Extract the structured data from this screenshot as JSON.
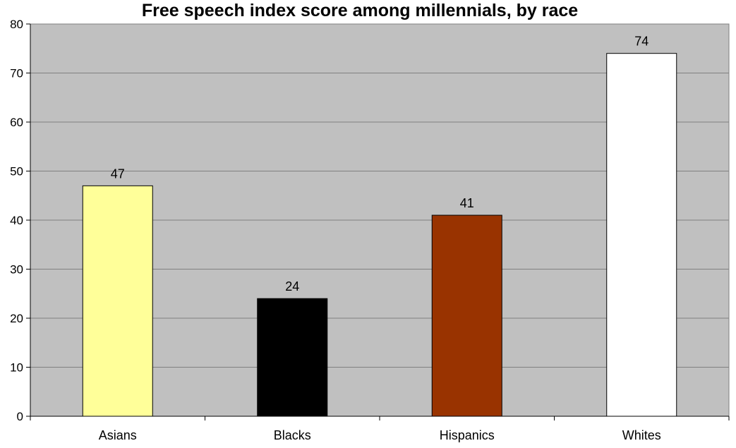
{
  "chart_data": {
    "type": "bar",
    "title": "Free speech index score among millennials, by race",
    "xlabel": "",
    "ylabel": "",
    "categories": [
      "Asians",
      "Blacks",
      "Hispanics",
      "Whites"
    ],
    "values": [
      47,
      24,
      41,
      74
    ],
    "data_labels": [
      "47",
      "24",
      "41",
      "74"
    ],
    "bar_colors": [
      "#ffff99",
      "#000000",
      "#993300",
      "#ffffff"
    ],
    "ylim": [
      0,
      80
    ],
    "yticks": [
      0,
      10,
      20,
      30,
      40,
      50,
      60,
      70,
      80
    ],
    "ytick_labels": [
      "0",
      "10",
      "20",
      "30",
      "40",
      "50",
      "60",
      "70",
      "80"
    ],
    "grid": true,
    "legend": "none",
    "plot_background": "#c0c0c0",
    "gridline_color": "#808080"
  }
}
